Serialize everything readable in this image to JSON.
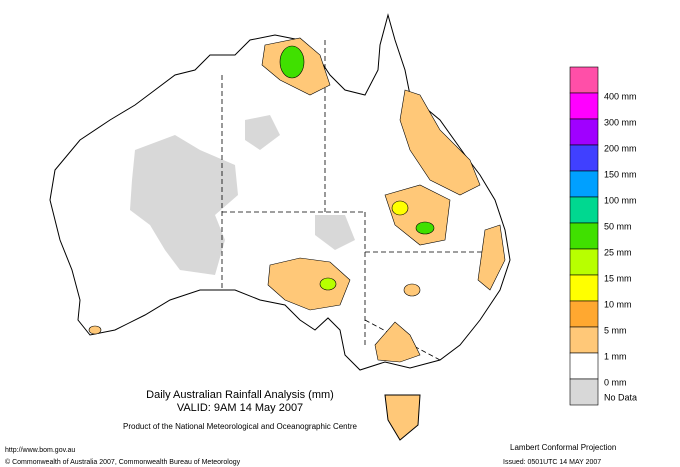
{
  "title": "Daily Australian Rainfall Analysis (mm)",
  "valid": "VALID: 9AM 14 May 2007",
  "product": "Product of the National Meteorological and Oceanographic Centre",
  "url": "http://www.bom.gov.au",
  "copyright": "© Commonwealth of Australia 2007, Commonwealth Bureau of Meteorology",
  "projection": "Lambert Conformal Projection",
  "issued": "Issued: 0501UTC 14 MAY 2007",
  "legend": {
    "colors": [
      "#ff4fa8",
      "#ff00ff",
      "#a000ff",
      "#4040ff",
      "#00a0ff",
      "#00d890",
      "#40e000",
      "#b8ff00",
      "#ffff00",
      "#ffa830",
      "#ffc878",
      "#ffffff",
      "#d8d8d8"
    ],
    "labels": [
      "400 mm",
      "300 mm",
      "200 mm",
      "150 mm",
      "100 mm",
      "50 mm",
      "25 mm",
      "15 mm",
      "10 mm",
      "5 mm",
      "1 mm",
      "0 mm",
      "No Data"
    ]
  }
}
